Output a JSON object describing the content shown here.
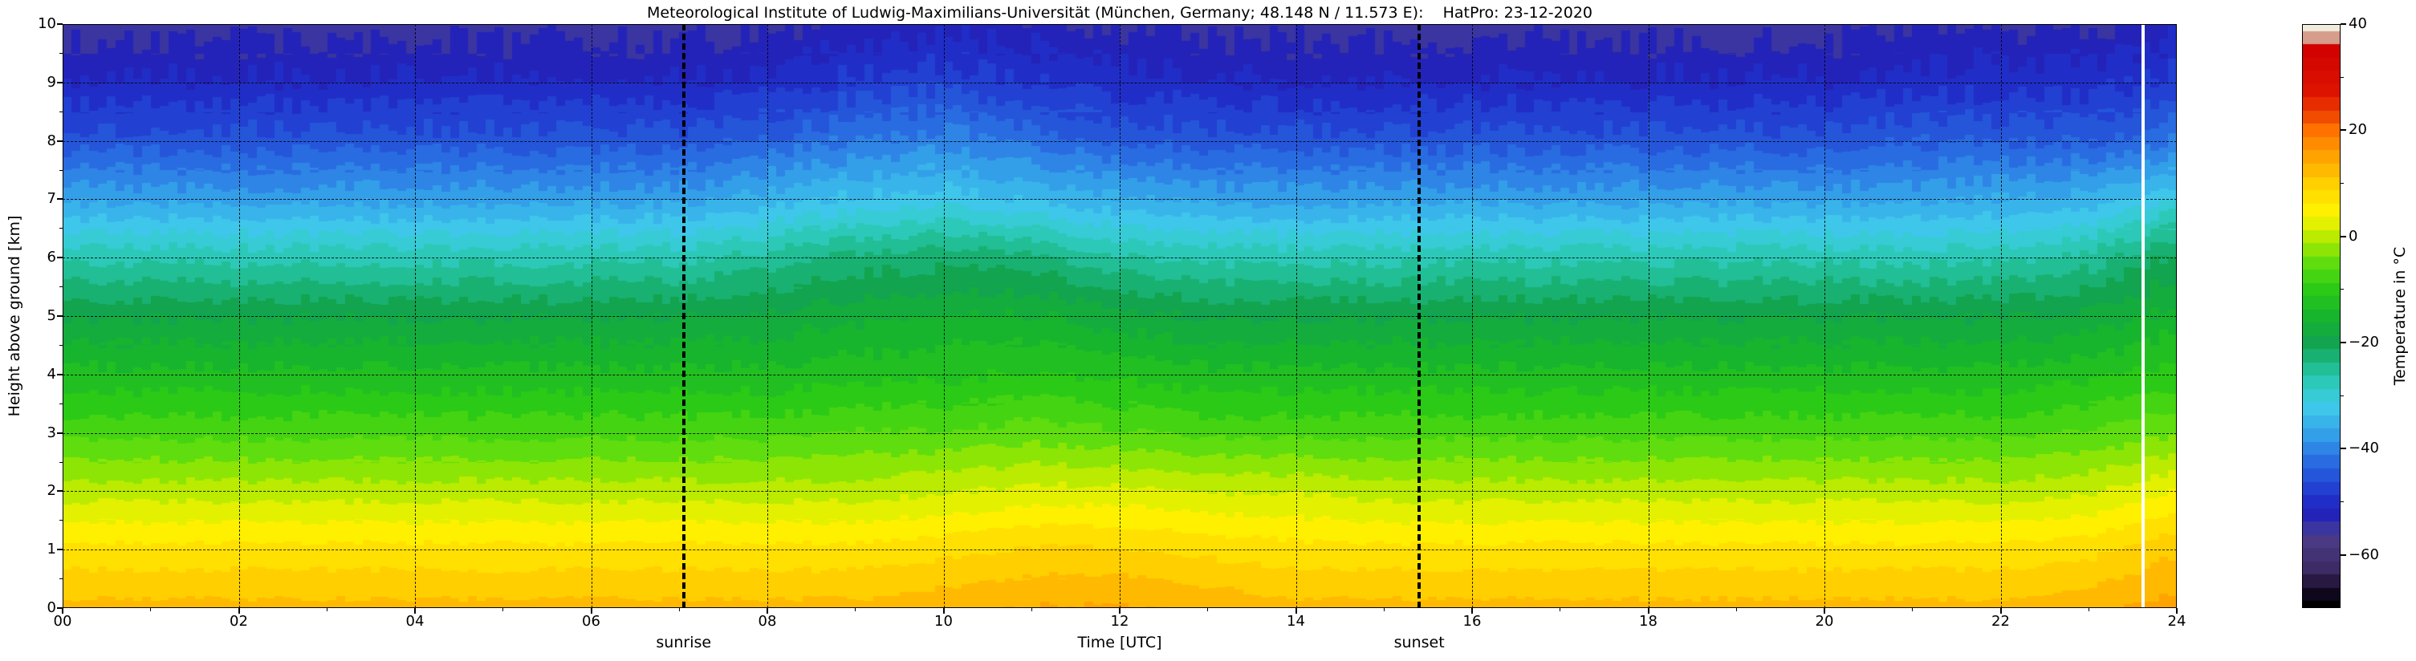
{
  "title": "Meteorological Institute of Ludwig-Maximilians-Universität (München, Germany; 48.148 N / 11.573 E):    HatPro: 23-12-2020",
  "axes": {
    "x_label": "Time [UTC]",
    "y_label": "Height above ground [km]",
    "x_tick_values": [
      0,
      2,
      4,
      6,
      8,
      10,
      12,
      14,
      16,
      18,
      20,
      22,
      24
    ],
    "x_tick_labels": [
      "00",
      "02",
      "04",
      "06",
      "08",
      "10",
      "12",
      "14",
      "16",
      "18",
      "20",
      "22",
      "24"
    ],
    "x_minor_tick_values": [
      1,
      3,
      5,
      7,
      9,
      11,
      13,
      15,
      17,
      19,
      21,
      23
    ],
    "y_tick_values": [
      0,
      1,
      2,
      3,
      4,
      5,
      6,
      7,
      8,
      9,
      10
    ],
    "y_tick_labels": [
      "0",
      "1",
      "2",
      "3",
      "4",
      "5",
      "6",
      "7",
      "8",
      "9",
      "10"
    ]
  },
  "annotations": {
    "sunrise_label": "sunrise",
    "sunset_label": "sunset",
    "sunrise_time_utc": 7.05,
    "sunset_time_utc": 15.4,
    "white_gap_time_utc": 23.62
  },
  "colorbar": {
    "label": "Temperature in °C",
    "tick_values": [
      40,
      20,
      0,
      -20,
      -40,
      -60
    ],
    "tick_labels": [
      "40",
      "20",
      "0",
      "−20",
      "−40",
      "−60"
    ],
    "minor_tick_values": [
      30,
      10,
      -10,
      -30,
      -50
    ],
    "range_min": -70,
    "range_max": 40
  },
  "chart_data": {
    "type": "heatmap",
    "title": "Meteorological Institute of Ludwig-Maximilians-Universität (München, Germany; 48.148 N / 11.573 E):    HatPro: 23-12-2020",
    "xlabel": "Time [UTC]",
    "ylabel": "Height above ground [km]",
    "value_label": "Temperature in °C",
    "xlim": [
      0,
      24
    ],
    "ylim": [
      0,
      10
    ],
    "clim": [
      -70,
      40
    ],
    "x_hours": [
      0,
      1,
      2,
      3,
      4,
      5,
      6,
      7,
      8,
      9,
      10,
      11,
      12,
      13,
      14,
      15,
      16,
      17,
      18,
      19,
      20,
      21,
      22,
      23,
      24
    ],
    "y_km": [
      0,
      1,
      2,
      3,
      4,
      5,
      6,
      7,
      8,
      9,
      10
    ],
    "temperature_c": [
      [
        12,
        12,
        12,
        12,
        12,
        12,
        12,
        12,
        12,
        12,
        13,
        14,
        14,
        13,
        12,
        12,
        12,
        12,
        12,
        12,
        12,
        12,
        12,
        13,
        15
      ],
      [
        7,
        7,
        7,
        7,
        7,
        7,
        7,
        7,
        7,
        7,
        8,
        9,
        9,
        8,
        7,
        7,
        7,
        7,
        7,
        7,
        7,
        7,
        7,
        8,
        11
      ],
      [
        0,
        0,
        0,
        0,
        0,
        0,
        0,
        0,
        0,
        0,
        1,
        2,
        2,
        1,
        1,
        0,
        0,
        0,
        0,
        0,
        0,
        0,
        0,
        1,
        4
      ],
      [
        -7,
        -7,
        -7,
        -7,
        -7,
        -7,
        -7,
        -7,
        -7,
        -6,
        -6,
        -5,
        -6,
        -7,
        -7,
        -7,
        -7,
        -7,
        -7,
        -7,
        -7,
        -7,
        -7,
        -6,
        -4
      ],
      [
        -13,
        -13,
        -13,
        -13,
        -13,
        -13,
        -13,
        -13,
        -13,
        -12,
        -12,
        -11,
        -12,
        -13,
        -13,
        -13,
        -13,
        -13,
        -13,
        -13,
        -13,
        -13,
        -13,
        -12,
        -10
      ],
      [
        -19,
        -19,
        -19,
        -19,
        -19,
        -19,
        -19,
        -19,
        -18,
        -17,
        -16,
        -16,
        -18,
        -19,
        -19,
        -19,
        -19,
        -19,
        -19,
        -19,
        -19,
        -19,
        -19,
        -18,
        -15
      ],
      [
        -27,
        -27,
        -27,
        -27,
        -27,
        -27,
        -27,
        -27,
        -25,
        -23,
        -22,
        -23,
        -26,
        -27,
        -27,
        -27,
        -27,
        -27,
        -27,
        -27,
        -27,
        -27,
        -27,
        -25,
        -20
      ],
      [
        -37,
        -37,
        -37,
        -37,
        -37,
        -37,
        -37,
        -37,
        -35,
        -33,
        -32,
        -34,
        -36,
        -37,
        -37,
        -37,
        -37,
        -37,
        -37,
        -37,
        -37,
        -37,
        -36,
        -35,
        -31
      ],
      [
        -45,
        -45,
        -45,
        -45,
        -45,
        -45,
        -45,
        -45,
        -43,
        -41,
        -40,
        -42,
        -44,
        -45,
        -45,
        -45,
        -45,
        -45,
        -45,
        -45,
        -45,
        -44,
        -44,
        -44,
        -41
      ],
      [
        -51,
        -51,
        -51,
        -51,
        -51,
        -51,
        -51,
        -51,
        -50,
        -48,
        -47,
        -49,
        -50,
        -51,
        -51,
        -51,
        -51,
        -51,
        -51,
        -51,
        -51,
        -50,
        -50,
        -50,
        -48
      ],
      [
        -55,
        -55,
        -55,
        -55,
        -55,
        -55,
        -55,
        -55,
        -54,
        -53,
        -52,
        -53,
        -54,
        -55,
        -55,
        -55,
        -55,
        -55,
        -55,
        -55,
        -55,
        -54,
        -54,
        -54,
        -52
      ]
    ],
    "sunrise_utc": 7.05,
    "sunset_utc": 15.4,
    "colormap_stops": [
      [
        -70,
        "#000000"
      ],
      [
        -67,
        "#120822"
      ],
      [
        -63,
        "#3c2a62"
      ],
      [
        -57,
        "#4b3b86"
      ],
      [
        -55,
        "#3a35a0"
      ],
      [
        -52,
        "#1f1fbe"
      ],
      [
        -47,
        "#2244d4"
      ],
      [
        -42,
        "#2a70e2"
      ],
      [
        -37,
        "#35a4ea"
      ],
      [
        -32,
        "#3fcbea"
      ],
      [
        -28,
        "#2fcbbf"
      ],
      [
        -24,
        "#1db988"
      ],
      [
        -20,
        "#12a44e"
      ],
      [
        -15,
        "#17b42e"
      ],
      [
        -10,
        "#2aca16"
      ],
      [
        -5,
        "#5fdd0e"
      ],
      [
        -1,
        "#a8e900"
      ],
      [
        2,
        "#ddf000"
      ],
      [
        5,
        "#fff000"
      ],
      [
        10,
        "#ffcf00"
      ],
      [
        15,
        "#ffa300"
      ],
      [
        20,
        "#ff7200"
      ],
      [
        23,
        "#ef4400"
      ],
      [
        27,
        "#de1400"
      ],
      [
        36,
        "#cf0000"
      ],
      [
        38,
        "#d8d0ba"
      ],
      [
        40,
        "#f1ebdc"
      ]
    ],
    "quantize_step_c": 2.5,
    "legend_position": "right",
    "grid": true
  }
}
